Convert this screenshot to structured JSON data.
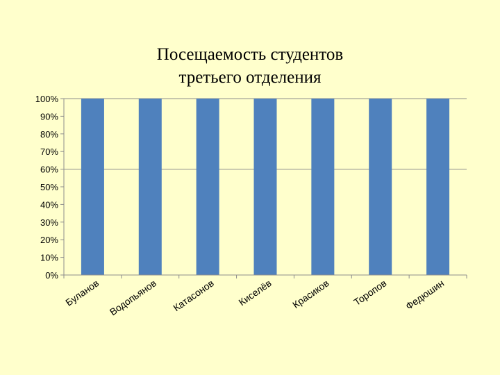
{
  "chart_data": {
    "type": "bar",
    "title_line1": "Посещаемость студентов",
    "title_line2": "третьего отделения",
    "categories": [
      "Буланов",
      "Водопьянов",
      "Катасонов",
      "Киселёв",
      "Красиков",
      "Торопов",
      "Федюшин"
    ],
    "values": [
      100,
      100,
      100,
      100,
      100,
      100,
      100
    ],
    "ylim": [
      0,
      100
    ],
    "yticks": [
      "0%",
      "10%",
      "20%",
      "30%",
      "40%",
      "50%",
      "60%",
      "70%",
      "80%",
      "90%",
      "100%"
    ],
    "gridlines": [
      60,
      100
    ],
    "bar_color": "#4f81bd",
    "background": "#ffffcc"
  }
}
